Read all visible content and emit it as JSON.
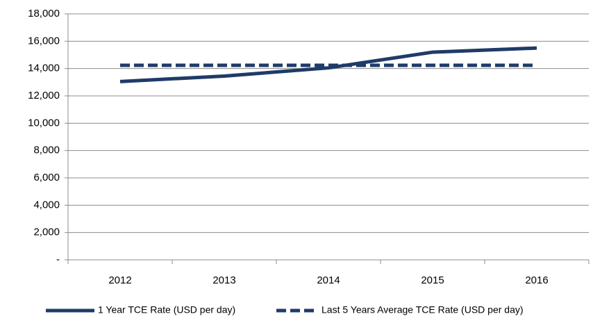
{
  "chart_data": {
    "type": "line",
    "categories": [
      "2012",
      "2013",
      "2014",
      "2015",
      "2016"
    ],
    "series": [
      {
        "name": "1 Year TCE Rate (USD per day)",
        "color": "#1f3b68",
        "line_style": "solid",
        "values": [
          13050,
          13450,
          14050,
          15200,
          15500
        ]
      },
      {
        "name": "Last 5 Years Average TCE Rate (USD per day)",
        "color": "#1f3b68",
        "line_style": "dashed",
        "values": [
          14240,
          14240,
          14240,
          14240,
          14240
        ]
      }
    ],
    "ylim": [
      0,
      18000
    ],
    "yticks": [
      {
        "value": 0,
        "label": "-"
      },
      {
        "value": 2000,
        "label": "2,000"
      },
      {
        "value": 4000,
        "label": "4,000"
      },
      {
        "value": 6000,
        "label": "6,000"
      },
      {
        "value": 8000,
        "label": "8,000"
      },
      {
        "value": 10000,
        "label": "10,000"
      },
      {
        "value": 12000,
        "label": "12,000"
      },
      {
        "value": 14000,
        "label": "14,000"
      },
      {
        "value": 16000,
        "label": "16,000"
      },
      {
        "value": 18000,
        "label": "18,000"
      }
    ],
    "grid": true,
    "legend": "bottom"
  }
}
